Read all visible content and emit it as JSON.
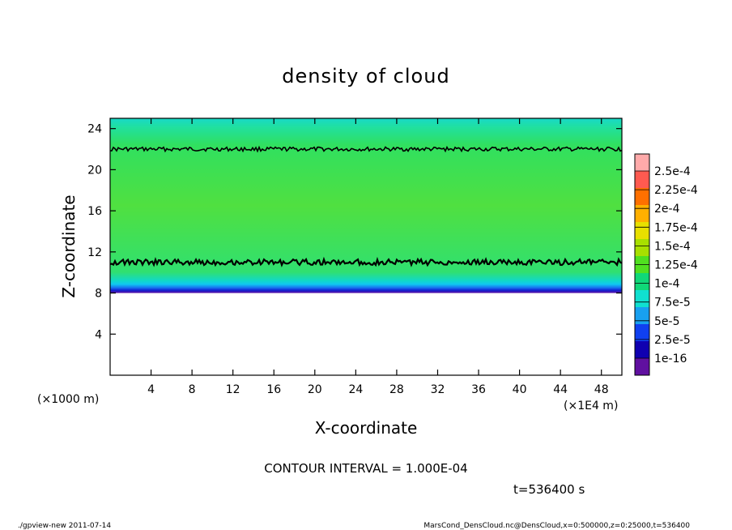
{
  "chart_data": {
    "type": "heatmap",
    "title": "density of cloud",
    "xlabel": "X-coordinate",
    "ylabel": "Z-coordinate",
    "x_unit_left": "(×1000 m)",
    "x_unit_right": "(×1E4 m)",
    "xlim": [
      0,
      50
    ],
    "ylim": [
      0,
      25
    ],
    "x_ticks": [
      4,
      8,
      12,
      16,
      20,
      24,
      28,
      32,
      36,
      40,
      44,
      48
    ],
    "y_ticks": [
      4,
      8,
      12,
      16,
      20,
      24
    ],
    "contour_interval": "CONTOUR INTERVAL = 1.000E-04",
    "time_label": "t=536400 s",
    "colorbar": {
      "labels": [
        "2.5e-4",
        "2.25e-4",
        "2e-4",
        "1.75e-4",
        "1.5e-4",
        "1.25e-4",
        "1e-4",
        "7.5e-5",
        "5e-5",
        "2.5e-5",
        "1e-16"
      ],
      "colors": [
        "#ffaaaa",
        "#ff5a50",
        "#ff7000",
        "#ffb000",
        "#e8e000",
        "#a8e000",
        "#50e020",
        "#10d878",
        "#10e0d0",
        "#18a0f0",
        "#1040f0",
        "#1000b0",
        "#6010a0"
      ]
    },
    "layers": [
      {
        "z_from": 0,
        "z_to": 8,
        "level": "none"
      },
      {
        "z_from": 8,
        "z_to": 9.5,
        "level": "1e-16 to 5e-5"
      },
      {
        "z_from": 9.5,
        "z_to": 11,
        "level": "5e-5 to 1e-4"
      },
      {
        "z_from": 11,
        "z_to": 22,
        "level": "1e-4 to 1.25e-4"
      },
      {
        "z_from": 22,
        "z_to": 25,
        "level": "7.5e-5 to 1e-4"
      }
    ],
    "contour_lines_z": [
      22,
      11
    ]
  },
  "footer": {
    "left": "./gpview-new  2011-07-14",
    "right": "MarsCond_DensCloud.nc@DensCloud,x=0:500000,z=0:25000,t=536400"
  }
}
